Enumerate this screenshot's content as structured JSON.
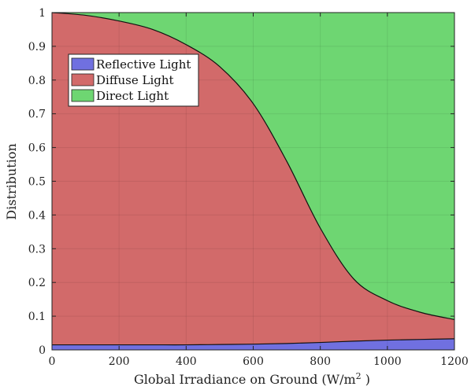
{
  "chart_data": {
    "type": "area",
    "stacked": true,
    "title": "",
    "xlabel": "Global Irradiance on Ground (W/m",
    "xlabel_sup": "2",
    "xlabel_close": " )",
    "ylabel": "Distribution",
    "xlim": [
      0,
      1200
    ],
    "ylim": [
      0,
      1
    ],
    "x_ticks": [
      0,
      200,
      400,
      600,
      800,
      1000,
      1200
    ],
    "y_ticks": [
      0,
      0.1,
      0.2,
      0.3,
      0.4,
      0.5,
      0.6,
      0.7,
      0.8,
      0.9,
      1
    ],
    "y_tick_labels": [
      "0",
      "0.1",
      "0.2",
      "0.3",
      "0.4",
      "0.5",
      "0.6",
      "0.7",
      "0.8",
      "0.9",
      "1"
    ],
    "grid": true,
    "legend_position": "top-left",
    "x": [
      0,
      100,
      200,
      300,
      400,
      500,
      600,
      700,
      800,
      900,
      1000,
      1100,
      1200
    ],
    "series": [
      {
        "name": "Reflective Light",
        "color": "#7070e0",
        "values": [
          0.015,
          0.015,
          0.015,
          0.015,
          0.015,
          0.016,
          0.017,
          0.019,
          0.022,
          0.026,
          0.029,
          0.031,
          0.033
        ]
      },
      {
        "name": "Diffuse Light",
        "color": "#d26a6a",
        "values": [
          0.985,
          0.977,
          0.96,
          0.935,
          0.89,
          0.824,
          0.713,
          0.54,
          0.339,
          0.184,
          0.117,
          0.08,
          0.057
        ]
      },
      {
        "name": "Direct Light",
        "color": "#6ed672",
        "values": [
          0.0,
          0.008,
          0.025,
          0.05,
          0.095,
          0.16,
          0.27,
          0.441,
          0.639,
          0.79,
          0.854,
          0.889,
          0.91
        ]
      }
    ]
  }
}
